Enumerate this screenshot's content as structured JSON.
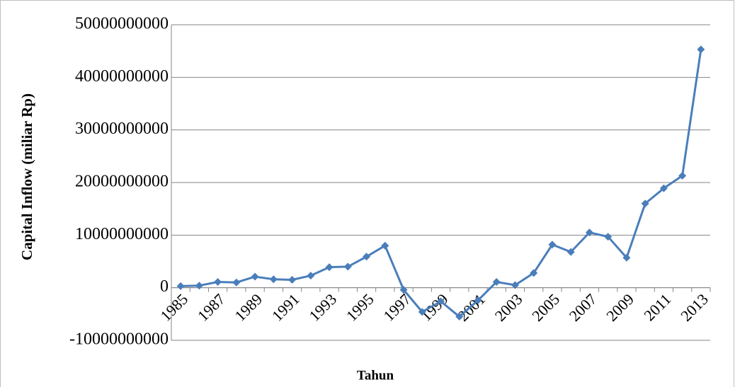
{
  "chart_data": {
    "type": "line",
    "x_label": "Tahun",
    "y_label": "Capital Inflow (miliar Rp)",
    "categories": [
      "1985",
      null,
      "1987",
      null,
      "1989",
      null,
      "1991",
      null,
      "1993",
      null,
      "1995",
      null,
      "1997",
      null,
      "1999",
      null,
      "2001",
      null,
      "2003",
      null,
      "2005",
      null,
      "2007",
      null,
      "2009",
      null,
      "2011",
      null,
      "2013"
    ],
    "series": [
      {
        "color": "#4a7ebb",
        "values": [
          300000000,
          400000000,
          1100000000,
          1000000000,
          2100000000,
          1600000000,
          1500000000,
          2300000000,
          3900000000,
          4000000000,
          5900000000,
          8000000000,
          -400000000,
          -4600000000,
          -2600000000,
          -5500000000,
          -2400000000,
          1100000000,
          500000000,
          2800000000,
          8200000000,
          6800000000,
          10500000000,
          9700000000,
          5700000000,
          16000000000,
          18900000000,
          21300000000,
          45300000000
        ]
      }
    ],
    "ylim": [
      -10000000000,
      50000000000
    ],
    "yticks": [
      -10000000000,
      0,
      10000000000,
      20000000000,
      30000000000,
      40000000000,
      50000000000
    ],
    "grid": true
  }
}
